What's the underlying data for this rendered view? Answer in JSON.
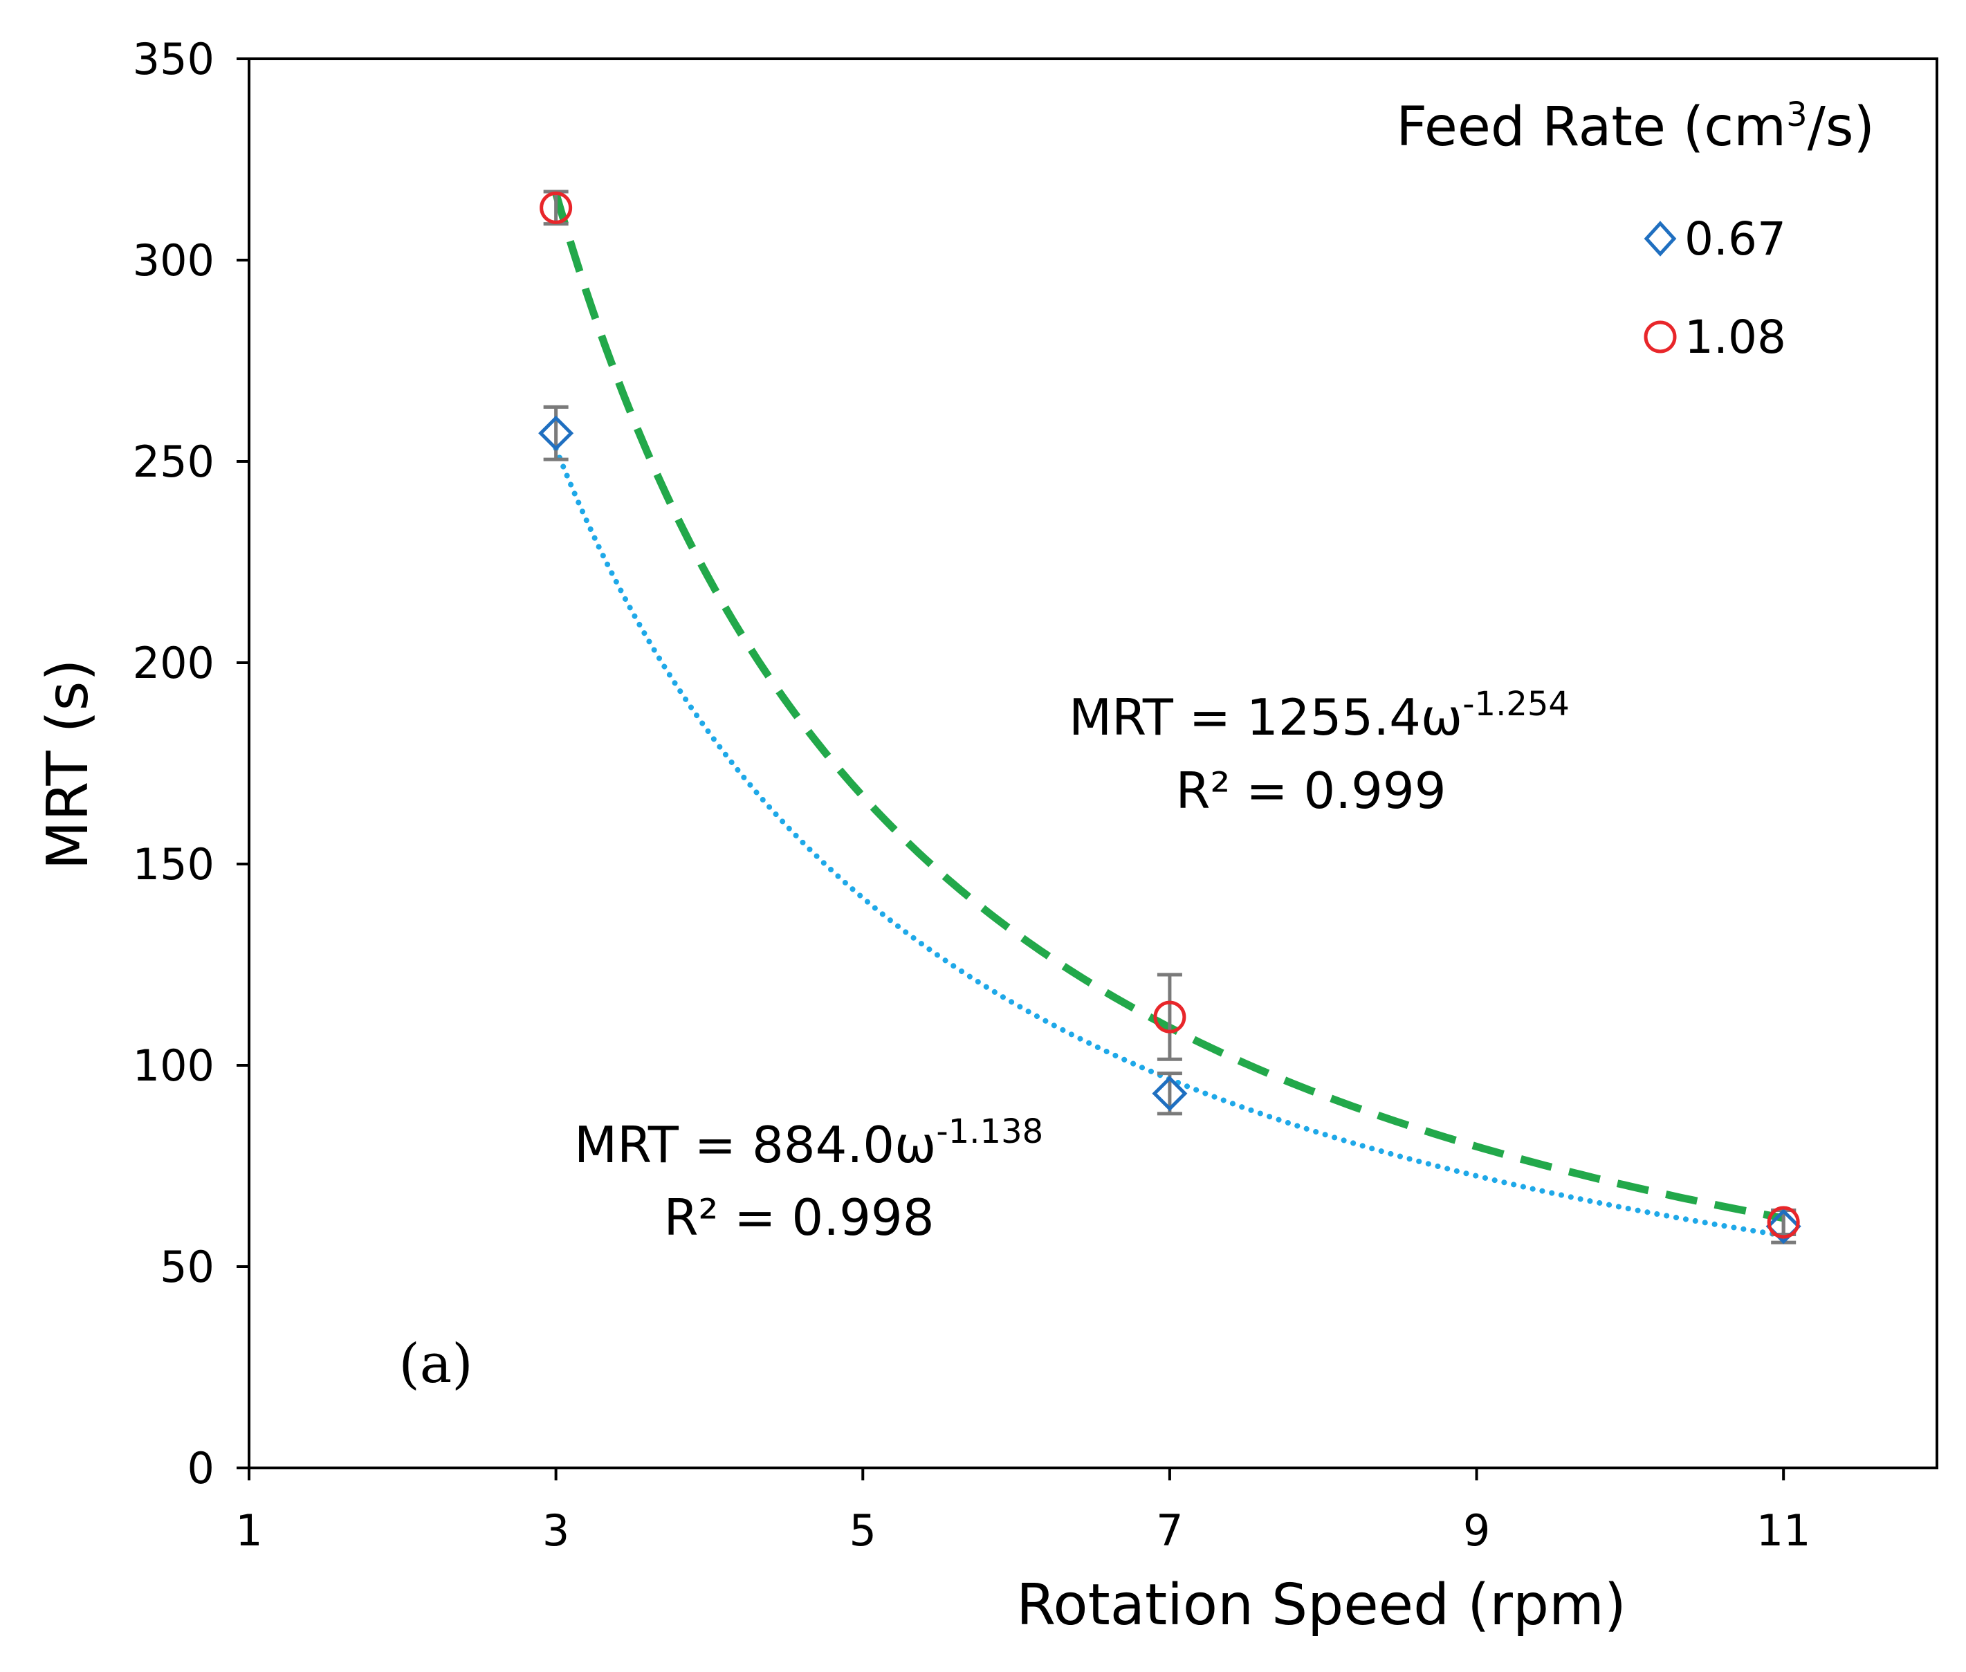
{
  "chart_data": {
    "type": "scatter",
    "title": "",
    "xlabel": "Rotation Speed (rpm)",
    "ylabel": "MRT (s)",
    "xlim": [
      1,
      12
    ],
    "ylim": [
      0,
      350
    ],
    "xticks": [
      1,
      3,
      5,
      7,
      9,
      11
    ],
    "yticks": [
      0,
      50,
      100,
      150,
      200,
      250,
      300,
      350
    ],
    "grid": false,
    "legend": {
      "title_main": "Feed Rate (cm",
      "title_sup": "3",
      "title_end": "/s)",
      "placement": "top-right"
    },
    "series": [
      {
        "name": "0.67",
        "marker": "diamond",
        "color": "#1f6fc0",
        "x": [
          3,
          7,
          11
        ],
        "y": [
          257,
          93,
          60
        ],
        "error": [
          6.5,
          5,
          4
        ],
        "fit": {
          "coef": 884.0,
          "exp": -1.138,
          "style": "dotted",
          "color": "#1ea8e8",
          "equation_main": "MRT = 884.0ω",
          "equation_sup": "-1.138",
          "r2_text": "R² = 0.998"
        }
      },
      {
        "name": "1.08",
        "marker": "circle",
        "color": "#e8262a",
        "x": [
          3,
          7,
          11
        ],
        "y": [
          313,
          112,
          61
        ],
        "error": [
          4,
          10.5,
          3
        ],
        "fit": {
          "coef": 1255.4,
          "exp": -1.254,
          "style": "dashed",
          "color": "#22a84a",
          "equation_main": "MRT = 1255.4ω",
          "equation_sup": "-1.254",
          "r2_text": "R² = 0.999"
        }
      }
    ],
    "error_bar_color": "#7a7a7a",
    "panel_label": "(a)"
  }
}
